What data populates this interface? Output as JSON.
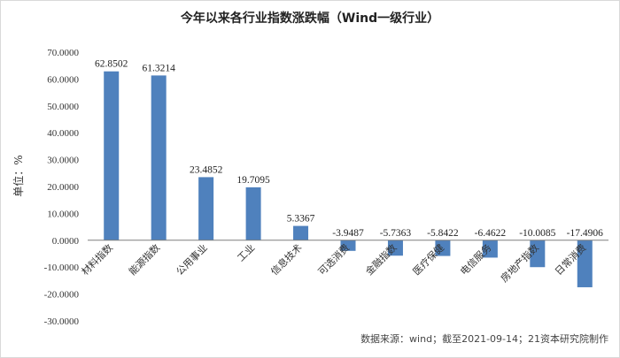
{
  "chart_data": {
    "type": "bar",
    "title": "今年以来各行业指数涨跌幅（Wind一级行业）",
    "ylabel": "单位：%",
    "ylim": [
      -30,
      70
    ],
    "yticks": [
      70,
      60,
      50,
      40,
      30,
      20,
      10,
      0,
      -10,
      -20,
      -30
    ],
    "ytick_labels": [
      "70.0000",
      "60.0000",
      "50.0000",
      "40.0000",
      "30.0000",
      "20.0000",
      "10.0000",
      "0.0000",
      "-10.0000",
      "-20.0000",
      "-30.0000"
    ],
    "grid": false,
    "bar_color": "#4F81BD",
    "categories": [
      "材料指数",
      "能源指数",
      "公用事业",
      "工业",
      "信息技术",
      "可选消费",
      "金融指数",
      "医疗保健",
      "电信服务",
      "房地产指数",
      "日常消费"
    ],
    "values": [
      62.8502,
      61.3214,
      23.4852,
      19.7095,
      5.3367,
      -3.9487,
      -5.7363,
      -5.8422,
      -6.4622,
      -10.0085,
      -17.4906
    ],
    "data_labels": [
      "62.8502",
      "61.3214",
      "23.4852",
      "19.7095",
      "5.3367",
      "-3.9487",
      "-5.7363",
      "-5.8422",
      "-6.4622",
      "-10.0085",
      "-17.4906"
    ],
    "source": "数据来源：wind；截至2021-09-14；21资本研究院制作"
  }
}
